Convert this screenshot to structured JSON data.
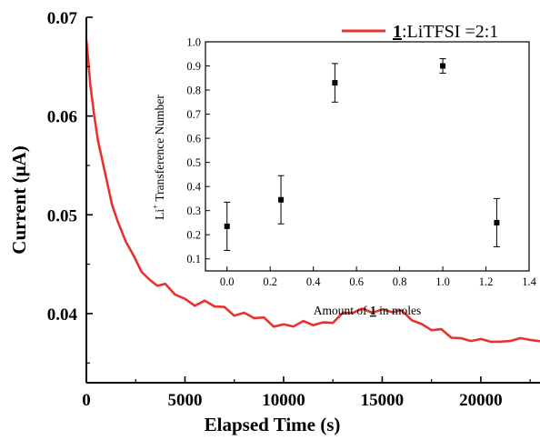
{
  "chart_data": [
    {
      "type": "line",
      "xlabel": "Elapsed Time (s)",
      "ylabel": "Current (μA)",
      "xlim": [
        0,
        23000
      ],
      "ylim": [
        0.033,
        0.07
      ],
      "xticks": [
        0,
        5000,
        10000,
        15000,
        20000
      ],
      "xtick_labels": [
        "0",
        "5000",
        "10000",
        "15000",
        "20000"
      ],
      "yticks": [
        0.04,
        0.05,
        0.06,
        0.07
      ],
      "ytick_labels": [
        "0.04",
        "0.05",
        "0.06",
        "0.07"
      ],
      "color": "#e8322d",
      "legend": {
        "position": "top-right",
        "compound": "1",
        "rest": ":LiTFSI =2:1"
      },
      "series": [
        {
          "name": "1:LiTFSI =2:1",
          "x": [
            0,
            100,
            200,
            400,
            600,
            800,
            1000,
            1300,
            1600,
            2000,
            2400,
            2800,
            3200,
            3600,
            4000,
            4500,
            5000,
            5500,
            6000,
            6500,
            7000,
            7500,
            8000,
            8500,
            9000,
            9500,
            10000,
            10500,
            11000,
            11500,
            12000,
            12500,
            13000,
            13500,
            14000,
            14500,
            15000,
            15500,
            16000,
            16500,
            17000,
            17500,
            18000,
            18500,
            19000,
            19500,
            20000,
            20500,
            21000,
            21500,
            22000,
            22500,
            23000
          ],
          "y": [
            0.0677,
            0.0655,
            0.0632,
            0.06,
            0.0575,
            0.0555,
            0.0535,
            0.0512,
            0.0494,
            0.0474,
            0.0455,
            0.0443,
            0.0435,
            0.0431,
            0.0427,
            0.0419,
            0.0414,
            0.0412,
            0.0411,
            0.0407,
            0.0404,
            0.0402,
            0.04,
            0.0396,
            0.0392,
            0.039,
            0.0389,
            0.0389,
            0.0388,
            0.039,
            0.0391,
            0.0394,
            0.0397,
            0.0401,
            0.0404,
            0.0405,
            0.0402,
            0.0401,
            0.0401,
            0.0397,
            0.0389,
            0.0383,
            0.0381,
            0.0378,
            0.0376,
            0.0373,
            0.0371,
            0.0372,
            0.0373,
            0.0374,
            0.0373,
            0.0372,
            0.0373
          ]
        }
      ]
    },
    {
      "type": "scatter",
      "xlabel_before": "Amount of ",
      "xlabel_compound": "1",
      "xlabel_after": " in moles",
      "ylabel_prefix": "Li",
      "ylabel_sup": "+",
      "ylabel_rest": " Transference Number",
      "xlim": [
        -0.1,
        1.4
      ],
      "ylim": [
        0.05,
        1.0
      ],
      "xticks": [
        0.0,
        0.2,
        0.4,
        0.6,
        0.8,
        1.0,
        1.2,
        1.4
      ],
      "xtick_labels": [
        "0.0",
        "0.2",
        "0.4",
        "0.6",
        "0.8",
        "1.0",
        "1.2",
        "1.4"
      ],
      "yticks": [
        0.1,
        0.2,
        0.3,
        0.4,
        0.5,
        0.6,
        0.7,
        0.8,
        0.9,
        1.0
      ],
      "ytick_labels": [
        "0.1",
        "0.2",
        "0.3",
        "0.4",
        "0.5",
        "0.6",
        "0.7",
        "0.8",
        "0.9",
        "1.0"
      ],
      "points": [
        {
          "x": 0.0,
          "y": 0.235,
          "err": 0.1
        },
        {
          "x": 0.25,
          "y": 0.345,
          "err": 0.1
        },
        {
          "x": 0.5,
          "y": 0.83,
          "err": 0.08
        },
        {
          "x": 1.0,
          "y": 0.9,
          "err": 0.03
        },
        {
          "x": 1.25,
          "y": 0.25,
          "err": 0.1
        }
      ]
    }
  ]
}
